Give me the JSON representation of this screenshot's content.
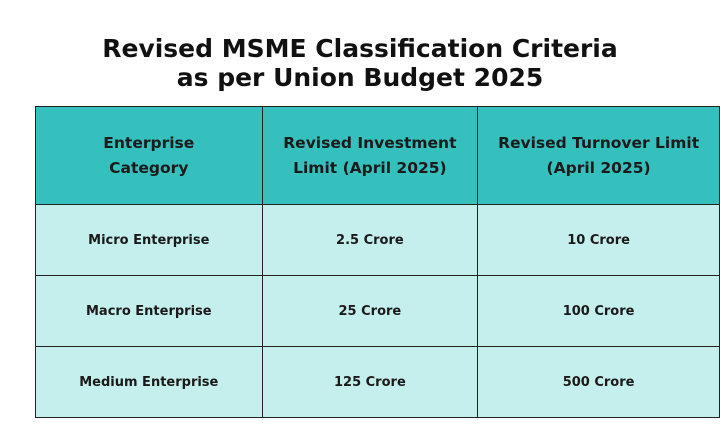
{
  "header": {
    "title": [
      "Revised MSME Classification Criteria",
      "as per Union Budget 2025"
    ]
  },
  "table": {
    "columns": [
      "Enterprise Category",
      "Revised Investment Limit (April 2025)",
      "Revised Turnover Limit (April 2025)"
    ],
    "rows": [
      [
        "Micro Enterprise",
        "2.5 Crore",
        "10 Crore"
      ],
      [
        "Macro Enterprise",
        "25 Crore",
        "100 Crore"
      ],
      [
        "Medium Enterprise",
        "125 Crore",
        "500 Crore"
      ]
    ]
  }
}
